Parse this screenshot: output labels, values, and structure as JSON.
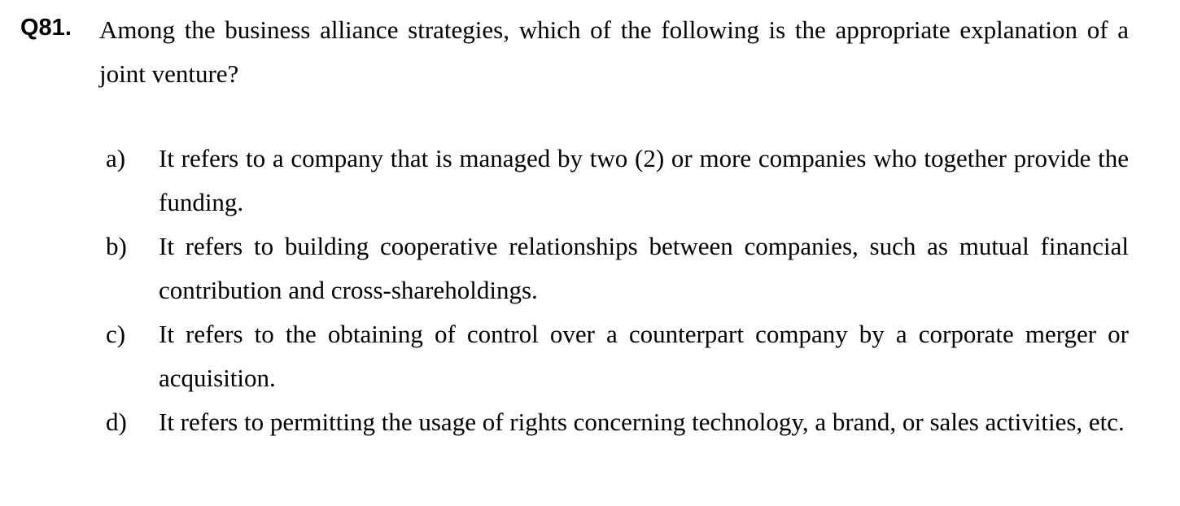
{
  "question": {
    "number": "Q81.",
    "text": "Among the business alliance strategies, which of the following is the appropriate explanation of a joint venture?"
  },
  "options": [
    {
      "letter": "a)",
      "text": "It refers to a company that is managed by two (2) or more companies who together provide the funding."
    },
    {
      "letter": "b)",
      "text": "It refers to building cooperative relationships between companies, such as mutual financial contribution and cross-shareholdings."
    },
    {
      "letter": "c)",
      "text": "It refers to the obtaining of control over a counterpart company by a corporate merger or acquisition."
    },
    {
      "letter": "d)",
      "text": "It refers to permitting the usage of rights concerning technology, a brand, or sales activities, etc."
    }
  ]
}
